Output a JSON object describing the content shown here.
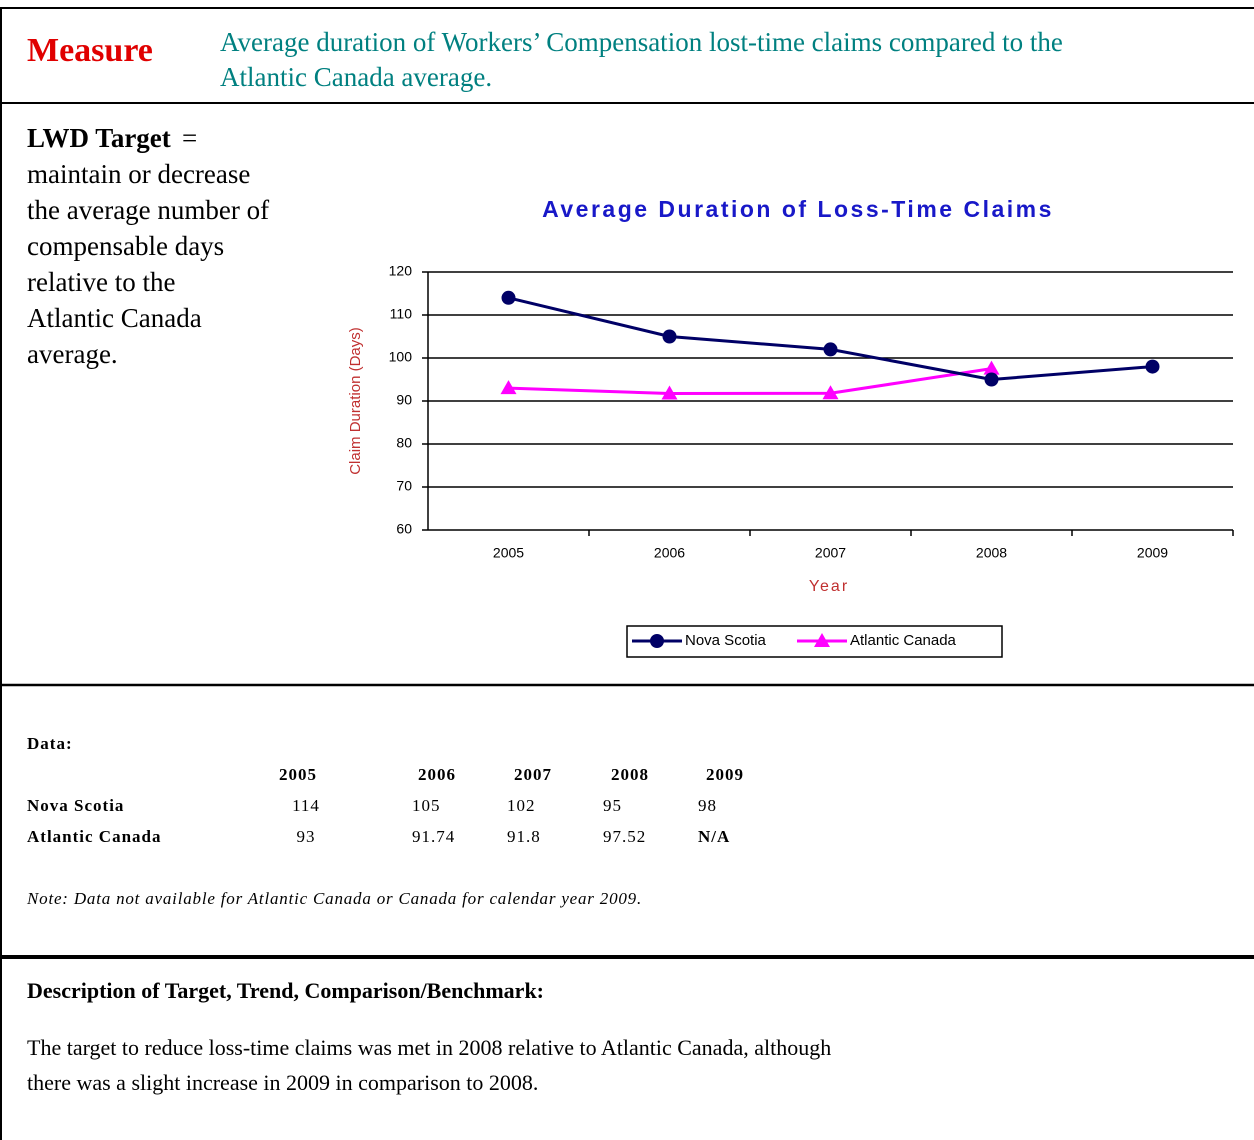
{
  "measure": {
    "label": "Measure",
    "lines": [
      "Average duration of Workers’ Compensation lost-time claims compared to the",
      "Atlantic Canada average."
    ]
  },
  "target": {
    "label": "LWD Target",
    "equals": "=",
    "lines": [
      "maintain or decrease",
      "the average number of",
      "compensable days",
      "relative to the",
      "Atlantic Canada",
      "average."
    ]
  },
  "chart_data": {
    "type": "line",
    "title": "Average Duration of Loss-Time Claims",
    "ylabel": "Claim Duration (Days)",
    "xlabel": "Year",
    "categories": [
      "2005",
      "2006",
      "2007",
      "2008",
      "2009"
    ],
    "series": [
      {
        "name": "Nova Scotia",
        "color": "#000066",
        "marker": "circle",
        "values": [
          114,
          105,
          102,
          95,
          98
        ]
      },
      {
        "name": "Atlantic Canada",
        "color": "#ff00ff",
        "marker": "triangle",
        "values": [
          93,
          91.74,
          91.8,
          97.52,
          null
        ]
      }
    ],
    "ylim": [
      60,
      120
    ],
    "yticks": [
      60,
      70,
      80,
      90,
      100,
      110,
      120
    ],
    "grid": true,
    "legend": "bottom"
  },
  "data_table": {
    "label": "Data:",
    "header": [
      "2005",
      "2006",
      "2007",
      "2008",
      "2009"
    ],
    "rows": [
      {
        "name": "Nova Scotia",
        "cells": [
          "114",
          "105",
          "102",
          "95",
          "98"
        ]
      },
      {
        "name": "Atlantic Canada",
        "cells": [
          "93",
          "91.74",
          "91.8",
          "97.52",
          "N/A"
        ]
      }
    ],
    "note": "Note: Data not available for Atlantic Canada or Canada for calendar year 2009."
  },
  "description": {
    "heading": "Description of Target, Trend, Comparison/Benchmark:",
    "lines": [
      "The target to reduce loss-time claims was met in 2008 relative to Atlantic Canada, although",
      "there was a slight increase in 2009 in comparison to 2008."
    ]
  }
}
